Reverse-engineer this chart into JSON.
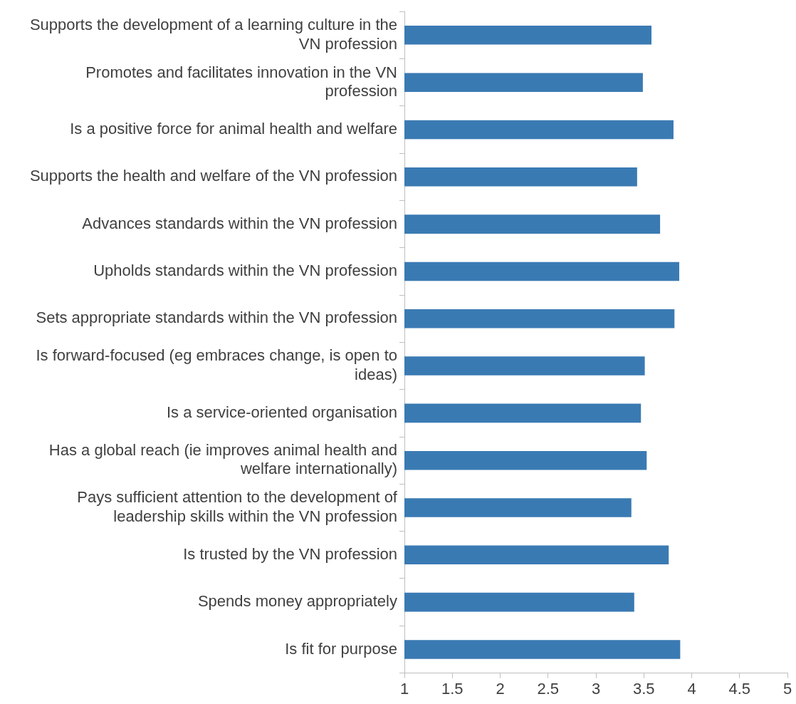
{
  "chart_data": {
    "type": "bar",
    "orientation": "horizontal",
    "categories": [
      "Supports the development of a learning culture in the VN profession",
      "Promotes and facilitates innovation in the VN profession",
      "Is a positive force for animal health and welfare",
      "Supports the health and welfare of the VN profession",
      "Advances standards within the VN profession",
      "Upholds standards within the VN profession",
      "Sets appropriate standards within the VN profession",
      "Is forward-focused (eg embraces change, is open to ideas)",
      "Is a service-oriented organisation",
      "Has a global reach (ie improves animal health and welfare internationally)",
      "Pays sufficient attention to the development of leadership skills within the VN profession",
      "Is trusted by the VN profession",
      "Spends money appropriately",
      "Is fit for purpose"
    ],
    "values": [
      3.58,
      3.49,
      3.81,
      3.43,
      3.67,
      3.87,
      3.82,
      3.51,
      3.47,
      3.53,
      3.37,
      3.76,
      3.4,
      3.88
    ],
    "color": "#3a7ab3",
    "xlim": [
      1,
      5
    ],
    "xticks": [
      1,
      1.5,
      2,
      2.5,
      3,
      3.5,
      4,
      4.5,
      5
    ],
    "grid": false,
    "legend": false
  }
}
